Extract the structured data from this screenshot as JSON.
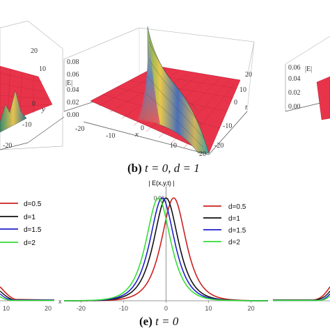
{
  "top_panel": {
    "caption_letter": "(b)",
    "caption_rest": "t = 0, d = 1",
    "z_label": "|E|",
    "x_label": "x",
    "t_label": "t",
    "left_y_label": "y",
    "z_ticks": [
      "0.08",
      "0.06",
      "0.04",
      "0.02",
      "0.00"
    ],
    "x_ticks": [
      "-20",
      "-10",
      "0",
      "10",
      "20"
    ],
    "t_ticks": [
      "20",
      "10",
      "0",
      "-10",
      "-20"
    ],
    "left_y_ticks": [
      "20",
      "10",
      "0",
      "-10",
      "-20"
    ],
    "right_z_ticks": [
      "0.06",
      "0.04",
      "0.02",
      "0.00"
    ],
    "right_z_label": "|E|",
    "surface_color": "#e8344a"
  },
  "bottom_panel": {
    "caption_letter": "(e)",
    "caption_rest": "t = 0",
    "axis_title": "| E(x,y,t) |",
    "left_x_ticks": [
      "10",
      "20"
    ]
  },
  "chart_data": {
    "type": "line",
    "title": "",
    "xlabel": "x",
    "ylabel": "| E(x,y,t) |",
    "xlim": [
      -24,
      24
    ],
    "ylim": [
      0,
      0.065
    ],
    "x_ticks": [
      -20,
      -10,
      0,
      10,
      20
    ],
    "y_ticks": [
      0.06
    ],
    "legend_position": "top-right",
    "series": [
      {
        "name": "d=0.5",
        "color": "#cc1f1f",
        "center": 1.8,
        "peak": 0.06,
        "width": 4.1
      },
      {
        "name": "d=1",
        "color": "#111111",
        "center": 0.0,
        "peak": 0.06,
        "width": 4.1
      },
      {
        "name": "d=1.5",
        "color": "#1f1fcc",
        "center": -0.9,
        "peak": 0.06,
        "width": 4.1
      },
      {
        "name": "d=2",
        "color": "#33dd33",
        "center": -1.8,
        "peak": 0.06,
        "width": 4.1
      }
    ],
    "legend_left": [
      "d=0.5",
      "d=1",
      "d=1.5",
      "d=2"
    ]
  }
}
